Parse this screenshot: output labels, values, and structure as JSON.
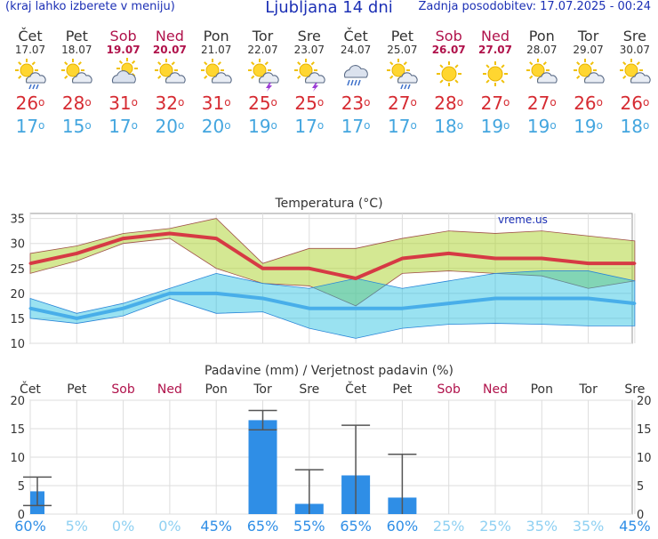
{
  "header": {
    "menu_hint": "(kraj lahko izberete v meniju)",
    "title": "Ljubljana 14 dni",
    "updated": "Zadnja posodobitev: 17.07.2025 - 00:24"
  },
  "days": [
    {
      "name": "Čet",
      "date": "17.07",
      "weekend": false,
      "icon": "sun-cloud-rain-icon",
      "tmax": "26",
      "tmin": "17"
    },
    {
      "name": "Pet",
      "date": "18.07",
      "weekend": false,
      "icon": "sun-cloud-icon",
      "tmax": "28",
      "tmin": "15"
    },
    {
      "name": "Sob",
      "date": "19.07",
      "weekend": true,
      "icon": "cloud-sun-icon",
      "tmax": "31",
      "tmin": "17"
    },
    {
      "name": "Ned",
      "date": "20.07",
      "weekend": true,
      "icon": "sun-cloud-icon",
      "tmax": "32",
      "tmin": "20"
    },
    {
      "name": "Pon",
      "date": "21.07",
      "weekend": false,
      "icon": "sun-cloud-icon",
      "tmax": "31",
      "tmin": "20"
    },
    {
      "name": "Tor",
      "date": "22.07",
      "weekend": false,
      "icon": "sun-cloud-storm-icon",
      "tmax": "25",
      "tmin": "19"
    },
    {
      "name": "Sre",
      "date": "23.07",
      "weekend": false,
      "icon": "sun-cloud-storm-icon",
      "tmax": "25",
      "tmin": "17"
    },
    {
      "name": "Čet",
      "date": "24.07",
      "weekend": false,
      "icon": "cloud-rain-icon",
      "tmax": "23",
      "tmin": "17"
    },
    {
      "name": "Pet",
      "date": "25.07",
      "weekend": false,
      "icon": "sun-cloud-rain-icon",
      "tmax": "27",
      "tmin": "17"
    },
    {
      "name": "Sob",
      "date": "26.07",
      "weekend": true,
      "icon": "sun-icon",
      "tmax": "28",
      "tmin": "18"
    },
    {
      "name": "Ned",
      "date": "27.07",
      "weekend": true,
      "icon": "sun-icon",
      "tmax": "27",
      "tmin": "19"
    },
    {
      "name": "Pon",
      "date": "28.07",
      "weekend": false,
      "icon": "sun-cloud-icon",
      "tmax": "27",
      "tmin": "19"
    },
    {
      "name": "Tor",
      "date": "29.07",
      "weekend": false,
      "icon": "sun-cloud-icon",
      "tmax": "26",
      "tmin": "19"
    },
    {
      "name": "Sre",
      "date": "30.07",
      "weekend": false,
      "icon": "sun-cloud-icon",
      "tmax": "26",
      "tmin": "18"
    }
  ],
  "degree_sign": "o",
  "chart_data": [
    {
      "type": "line",
      "title": "Temperatura (°C)",
      "watermark": "vreme.us",
      "x": [
        "17.07",
        "18.07",
        "19.07",
        "20.07",
        "21.07",
        "22.07",
        "23.07",
        "24.07",
        "25.07",
        "26.07",
        "27.07",
        "28.07",
        "29.07",
        "30.07"
      ],
      "ylim": [
        10,
        36
      ],
      "yticks": [
        10,
        15,
        20,
        25,
        30,
        35
      ],
      "grid": true,
      "series": [
        {
          "name": "",
          "values": [
            26,
            28,
            31,
            32,
            31,
            25,
            25,
            23,
            27,
            28,
            27,
            27,
            26,
            26
          ],
          "color": "#d63a44"
        },
        {
          "name": "",
          "values": [
            17,
            15,
            17,
            20,
            20,
            19,
            17,
            17,
            17,
            18,
            19,
            19,
            19,
            18
          ],
          "color": "#48aee9"
        }
      ],
      "max_band": {
        "upper": [
          28,
          29.5,
          32,
          33,
          35,
          26,
          29,
          29,
          31,
          32.5,
          32,
          32.5,
          31.5,
          30.5
        ],
        "lower": [
          24,
          26.5,
          30,
          31,
          25,
          22,
          21.5,
          17.5,
          24,
          24.5,
          24,
          23.5,
          21,
          22.5
        ]
      },
      "min_band": {
        "upper": [
          19,
          16,
          18,
          21,
          24,
          22,
          21,
          23,
          21,
          22.5,
          24,
          24.5,
          24.5,
          22.5
        ],
        "lower": [
          15,
          14,
          15.5,
          19,
          16,
          16.3,
          13,
          11,
          13,
          13.8,
          14,
          13.8,
          13.5,
          13.5
        ]
      }
    },
    {
      "type": "bar",
      "title": "Padavine (mm) / Verjetnost padavin (%)",
      "categories": [
        "Čet",
        "Pet",
        "Sob",
        "Ned",
        "Pon",
        "Tor",
        "Sre",
        "Čet",
        "Pet",
        "Sob",
        "Ned",
        "Pon",
        "Tor",
        "Sre"
      ],
      "ylim": [
        0,
        20
      ],
      "yticks": [
        0,
        5,
        10,
        15,
        20
      ],
      "values": [
        4,
        0,
        0,
        0,
        0,
        16.5,
        1.8,
        6.8,
        2.9,
        0,
        0,
        0,
        0,
        0
      ],
      "range_low": [
        1.5,
        null,
        null,
        null,
        null,
        14.8,
        0,
        0,
        0,
        null,
        null,
        null,
        null,
        null
      ],
      "range_high": [
        6.5,
        null,
        null,
        null,
        null,
        18.2,
        7.8,
        15.6,
        10.5,
        null,
        null,
        null,
        null,
        null
      ],
      "probability": [
        "60%",
        "5%",
        "0%",
        "0%",
        "45%",
        "65%",
        "55%",
        "65%",
        "60%",
        "25%",
        "25%",
        "35%",
        "35%",
        "45%"
      ],
      "bar_color": "#2f8ee6"
    }
  ]
}
